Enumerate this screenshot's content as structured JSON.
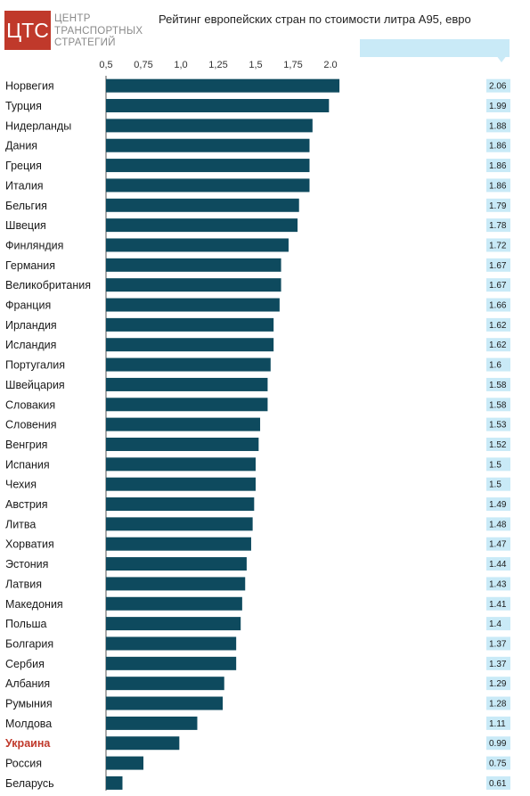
{
  "logo": {
    "mark": "ЦТС",
    "line1": "ЦЕНТР",
    "line2": "ТРАНСПОРТНЫХ",
    "line3": "СТРАТЕГИЙ"
  },
  "chart_data": {
    "type": "bar",
    "orientation": "horizontal",
    "title": "Рейтинг европейских стран по стоимости литра А95, евро",
    "xlim": [
      0.5,
      2.06
    ],
    "ticks": [
      "0,5",
      "0,75",
      "1,0",
      "1,25",
      "1,5",
      "1,75",
      "2.0"
    ],
    "tick_values": [
      0.5,
      0.75,
      1.0,
      1.25,
      1.5,
      1.75,
      2.0
    ],
    "grid": false,
    "highlight_category": "Украина",
    "colors": {
      "bar": "#0e4a5e",
      "value_box": "#c9eaf7",
      "highlight_text": "#c0392b",
      "logo": "#c0392b"
    },
    "categories": [
      "Норвегия",
      "Турция",
      "Нидерланды",
      "Дания",
      "Греция",
      "Италия",
      "Бельгия",
      "Швеция",
      "Финляндия",
      "Германия",
      "Великобритания",
      "Франция",
      "Ирландия",
      "Исландия",
      "Португалия",
      "Швейцария",
      "Словакия",
      "Словения",
      "Венгрия",
      "Испания",
      "Чехия",
      "Австрия",
      "Литва",
      "Хорватия",
      "Эстония",
      "Латвия",
      "Македония",
      "Польша",
      "Болгария",
      "Сербия",
      "Албания",
      "Румыния",
      "Молдова",
      "Украина",
      "Россия",
      "Беларусь"
    ],
    "values": [
      2.06,
      1.99,
      1.88,
      1.86,
      1.86,
      1.86,
      1.79,
      1.78,
      1.72,
      1.67,
      1.67,
      1.66,
      1.62,
      1.62,
      1.6,
      1.58,
      1.58,
      1.53,
      1.52,
      1.5,
      1.5,
      1.49,
      1.48,
      1.47,
      1.44,
      1.43,
      1.41,
      1.4,
      1.37,
      1.37,
      1.29,
      1.28,
      1.11,
      0.99,
      0.75,
      0.61
    ],
    "value_labels": [
      "2.06",
      "1.99",
      "1.88",
      "1.86",
      "1.86",
      "1.86",
      "1.79",
      "1.78",
      "1.72",
      "1.67",
      "1.67",
      "1.66",
      "1.62",
      "1.62",
      "1.6",
      "1.58",
      "1.58",
      "1.53",
      "1.52",
      "1.5",
      "1.5",
      "1.49",
      "1.48",
      "1.47",
      "1.44",
      "1.43",
      "1.41",
      "1.4",
      "1.37",
      "1.37",
      "1.29",
      "1.28",
      "1.11",
      "0.99",
      "0.75",
      "0.61"
    ]
  }
}
